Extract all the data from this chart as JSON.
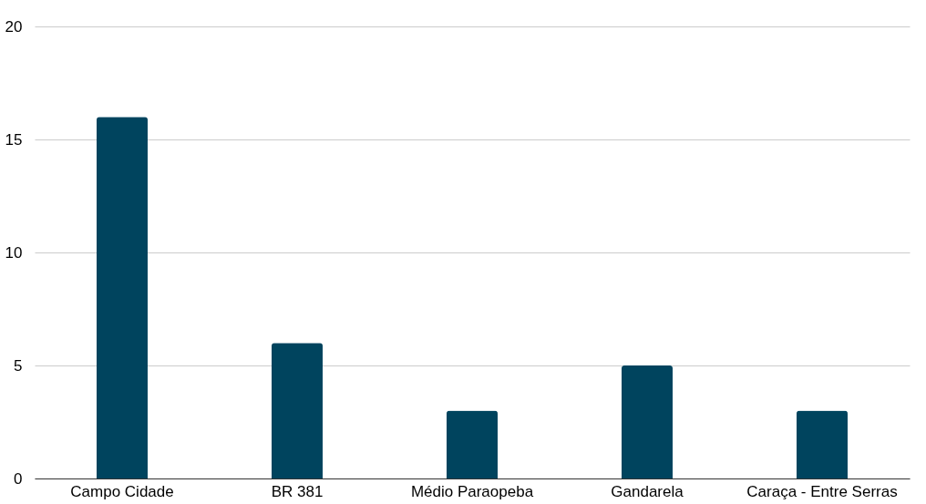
{
  "chart_data": {
    "type": "bar",
    "categories": [
      "Campo Cidade",
      "BR 381",
      "Médio Paraopeba",
      "Gandarela",
      "Caraça - Entre Serras"
    ],
    "values": [
      16,
      6,
      3,
      5,
      3
    ],
    "color": "#00445e",
    "ylim": [
      0,
      20
    ],
    "yticks": [
      0,
      5,
      10,
      15,
      20
    ],
    "grid": "y"
  }
}
